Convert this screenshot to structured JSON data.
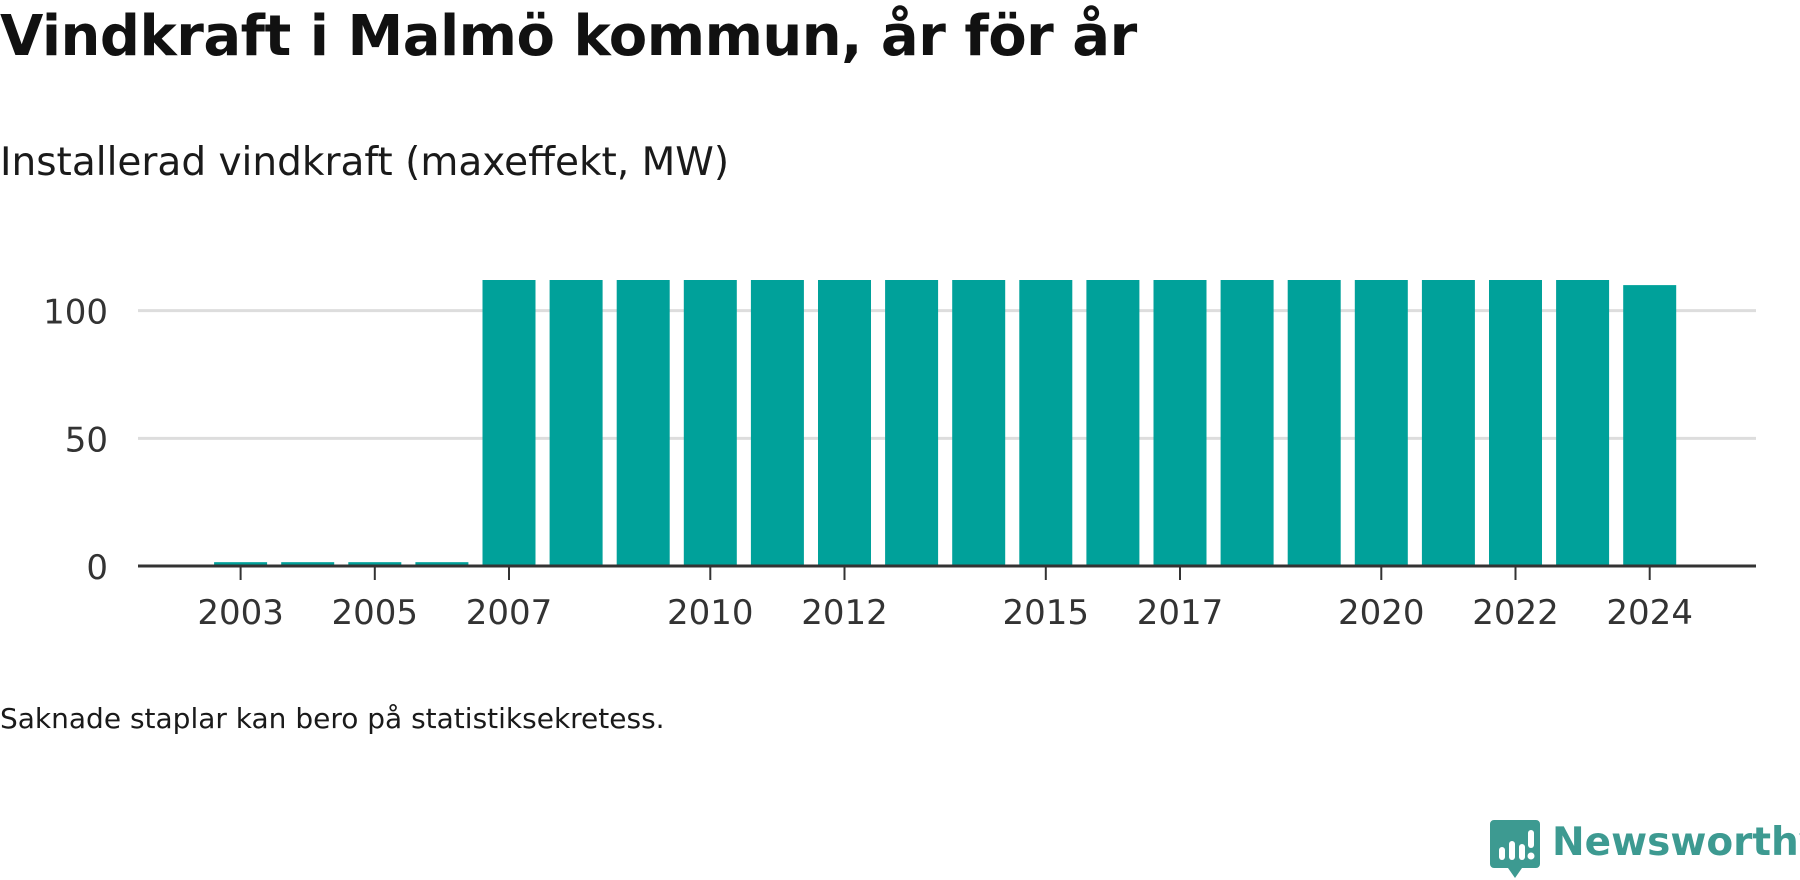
{
  "title": "Vindkraft i Malmö kommun, år för år",
  "subtitle": "Installerad vindkraft (maxeffekt, MW)",
  "note": "Saknade staplar kan bero på statistiksekretess.",
  "brand": {
    "name": "Newsworthy",
    "icon": "newsworthy-logo-icon",
    "color": "#3d9a91"
  },
  "colors": {
    "bar": "#00a19a",
    "grid": "#dddddd",
    "axis": "#333333"
  },
  "chart_data": {
    "type": "bar",
    "title": "Installerad vindkraft (maxeffekt, MW)",
    "xlabel": "",
    "ylabel": "",
    "categories": [
      "2002",
      "2003",
      "2004",
      "2005",
      "2006",
      "2007",
      "2008",
      "2009",
      "2010",
      "2011",
      "2012",
      "2013",
      "2014",
      "2015",
      "2016",
      "2017",
      "2018",
      "2019",
      "2020",
      "2021",
      "2022",
      "2023",
      "2024"
    ],
    "values": [
      null,
      1.5,
      1.5,
      1.5,
      1.5,
      112,
      112,
      112,
      112,
      112,
      112,
      112,
      112,
      112,
      112,
      112,
      112,
      112,
      112,
      112,
      112,
      112,
      110
    ],
    "x_tick_labels": [
      "2003",
      "2005",
      "2007",
      "2010",
      "2012",
      "2015",
      "2017",
      "2020",
      "2022",
      "2024"
    ],
    "y_ticks": [
      0,
      50,
      100
    ],
    "y_tick_labels": [
      "0",
      "50",
      "100"
    ],
    "ylim": [
      0,
      112
    ],
    "grid": true
  }
}
